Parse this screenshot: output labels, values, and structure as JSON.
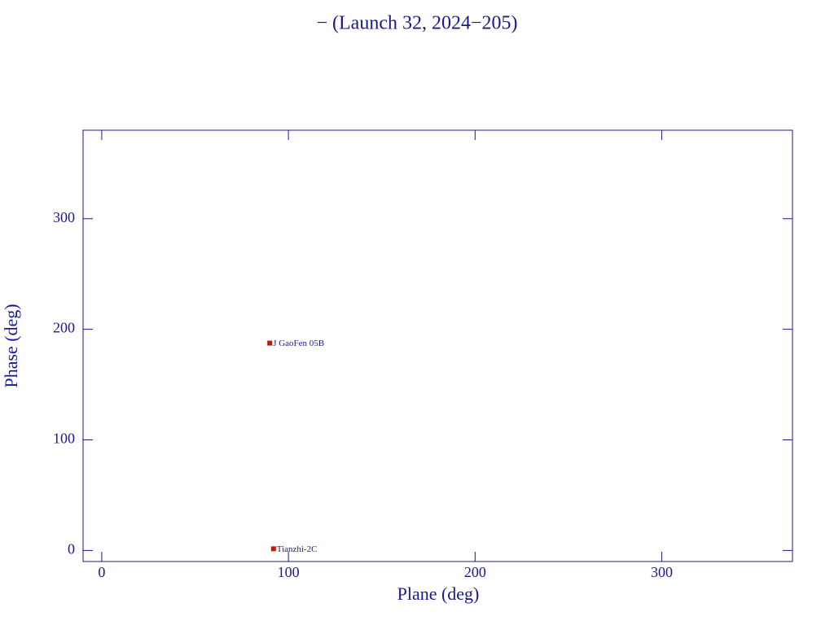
{
  "chart_data": {
    "type": "scatter",
    "title": "− (Launch 32, 2024−205)",
    "xlabel": "Plane (deg)",
    "ylabel": "Phase (deg)",
    "xlim": [
      -10,
      370
    ],
    "ylim": [
      -10,
      380
    ],
    "xticks": [
      0,
      100,
      200,
      300
    ],
    "yticks": [
      0,
      100,
      200,
      300
    ],
    "axis_color": "#1a1a8c",
    "series": [
      {
        "color": "#cc1111",
        "x": [
          90,
          92
        ],
        "values": [
          187.5,
          1.5
        ],
        "point_labels": [
          "J GaoFen 05B",
          "Tianzhi-2C"
        ]
      }
    ]
  }
}
